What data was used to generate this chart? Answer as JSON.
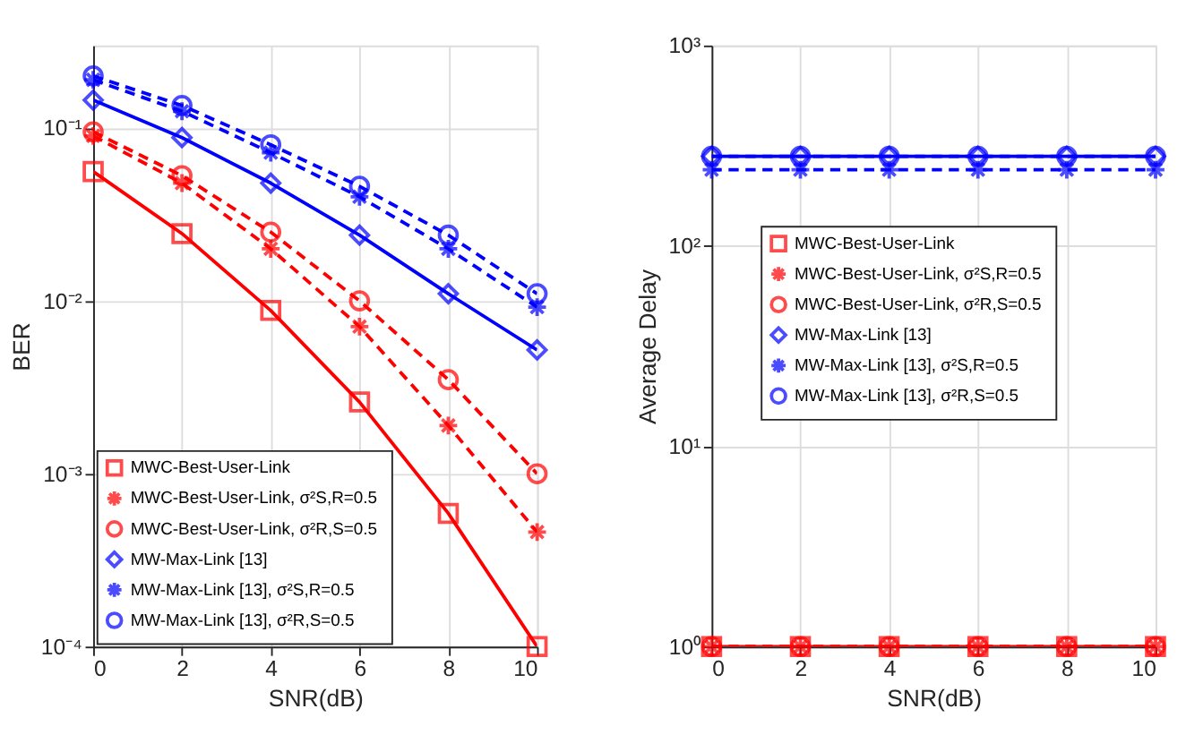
{
  "chart_data": [
    {
      "type": "line",
      "xlabel": "SNR(dB)",
      "ylabel": "BER",
      "log": "y",
      "grid": true,
      "legend": "bottom left",
      "x": [
        0,
        2,
        4,
        6,
        8,
        10
      ],
      "xlim": [
        0,
        10
      ],
      "xticks": [
        0,
        2,
        4,
        6,
        8,
        10
      ],
      "ylim": [
        0.0001,
        0.3
      ],
      "yticks": [
        {
          "value": 0.0001,
          "label": "10⁻⁴"
        },
        {
          "value": 0.001,
          "label": "10⁻³"
        },
        {
          "value": 0.01,
          "label": "10⁻²"
        },
        {
          "value": 0.1,
          "label": "10⁻¹"
        }
      ],
      "series": [
        {
          "name": "MWC-Best-User-Link",
          "color": "#ff0000",
          "marker": "square",
          "line_style": "solid",
          "values": [
            0.056,
            0.0245,
            0.0088,
            0.0026,
            0.00059,
            0.0001
          ]
        },
        {
          "name": "MWC-Best-User-Link,  σ²S,R=0.5",
          "color": "#ff0000",
          "marker": "cross",
          "line_style": "dashed",
          "values": [
            0.09,
            0.048,
            0.02,
            0.0071,
            0.0019,
            0.00046
          ]
        },
        {
          "name": "MWC-Best-User-Link,  σ²R,S=0.5",
          "color": "#ff0000",
          "marker": "circle",
          "line_style": "dashed",
          "values": [
            0.095,
            0.053,
            0.025,
            0.01,
            0.0035,
            0.001
          ]
        },
        {
          "name": "MW-Max-Link [13]",
          "color": "#0000ff",
          "marker": "diamond",
          "line_style": "solid",
          "values": [
            0.145,
            0.088,
            0.048,
            0.024,
            0.011,
            0.0052
          ]
        },
        {
          "name": "MW-Max-Link [13],  σ²S,R=0.5",
          "color": "#0000ff",
          "marker": "cross",
          "line_style": "dashed",
          "values": [
            0.19,
            0.125,
            0.072,
            0.04,
            0.02,
            0.0092
          ]
        },
        {
          "name": "MW-Max-Link [13],  σ²R,S=0.5",
          "color": "#0000ff",
          "marker": "circle",
          "line_style": "dashed",
          "values": [
            0.2,
            0.135,
            0.08,
            0.046,
            0.024,
            0.011
          ]
        }
      ]
    },
    {
      "type": "line",
      "xlabel": "SNR(dB)",
      "ylabel": "Average Delay",
      "log": "y",
      "grid": true,
      "legend": "center",
      "x": [
        0,
        2,
        4,
        6,
        8,
        10
      ],
      "xlim": [
        0,
        10
      ],
      "xticks": [
        0,
        2,
        4,
        6,
        8,
        10
      ],
      "ylim": [
        1,
        1000
      ],
      "yticks": [
        {
          "value": 1,
          "label": "10⁰"
        },
        {
          "value": 10,
          "label": "10¹"
        },
        {
          "value": 100,
          "label": "10²"
        },
        {
          "value": 1000,
          "label": "10³"
        }
      ],
      "series": [
        {
          "name": "MWC-Best-User-Link",
          "color": "#ff0000",
          "marker": "square",
          "line_style": "solid",
          "values": [
            1,
            1,
            1,
            1,
            1,
            1
          ]
        },
        {
          "name": "MWC-Best-User-Link,  σ²S,R=0.5",
          "color": "#ff0000",
          "marker": "cross",
          "line_style": "dashed",
          "values": [
            1,
            1,
            1,
            1,
            1,
            1
          ]
        },
        {
          "name": "MWC-Best-User-Link,  σ²R,S=0.5",
          "color": "#ff0000",
          "marker": "circle",
          "line_style": "dashed",
          "values": [
            1,
            1,
            1,
            1,
            1,
            1
          ]
        },
        {
          "name": "MW-Max-Link [13]",
          "color": "#0000ff",
          "marker": "diamond",
          "line_style": "solid",
          "values": [
            280,
            280,
            280,
            280,
            280,
            280
          ]
        },
        {
          "name": "MW-Max-Link [13],  σ²S,R=0.5",
          "color": "#0000ff",
          "marker": "cross",
          "line_style": "dashed",
          "values": [
            240,
            240,
            240,
            240,
            240,
            240
          ]
        },
        {
          "name": "MW-Max-Link [13],  σ²R,S=0.5",
          "color": "#0000ff",
          "marker": "circle",
          "line_style": "dashed",
          "values": [
            280,
            280,
            280,
            280,
            280,
            280
          ]
        }
      ]
    }
  ]
}
